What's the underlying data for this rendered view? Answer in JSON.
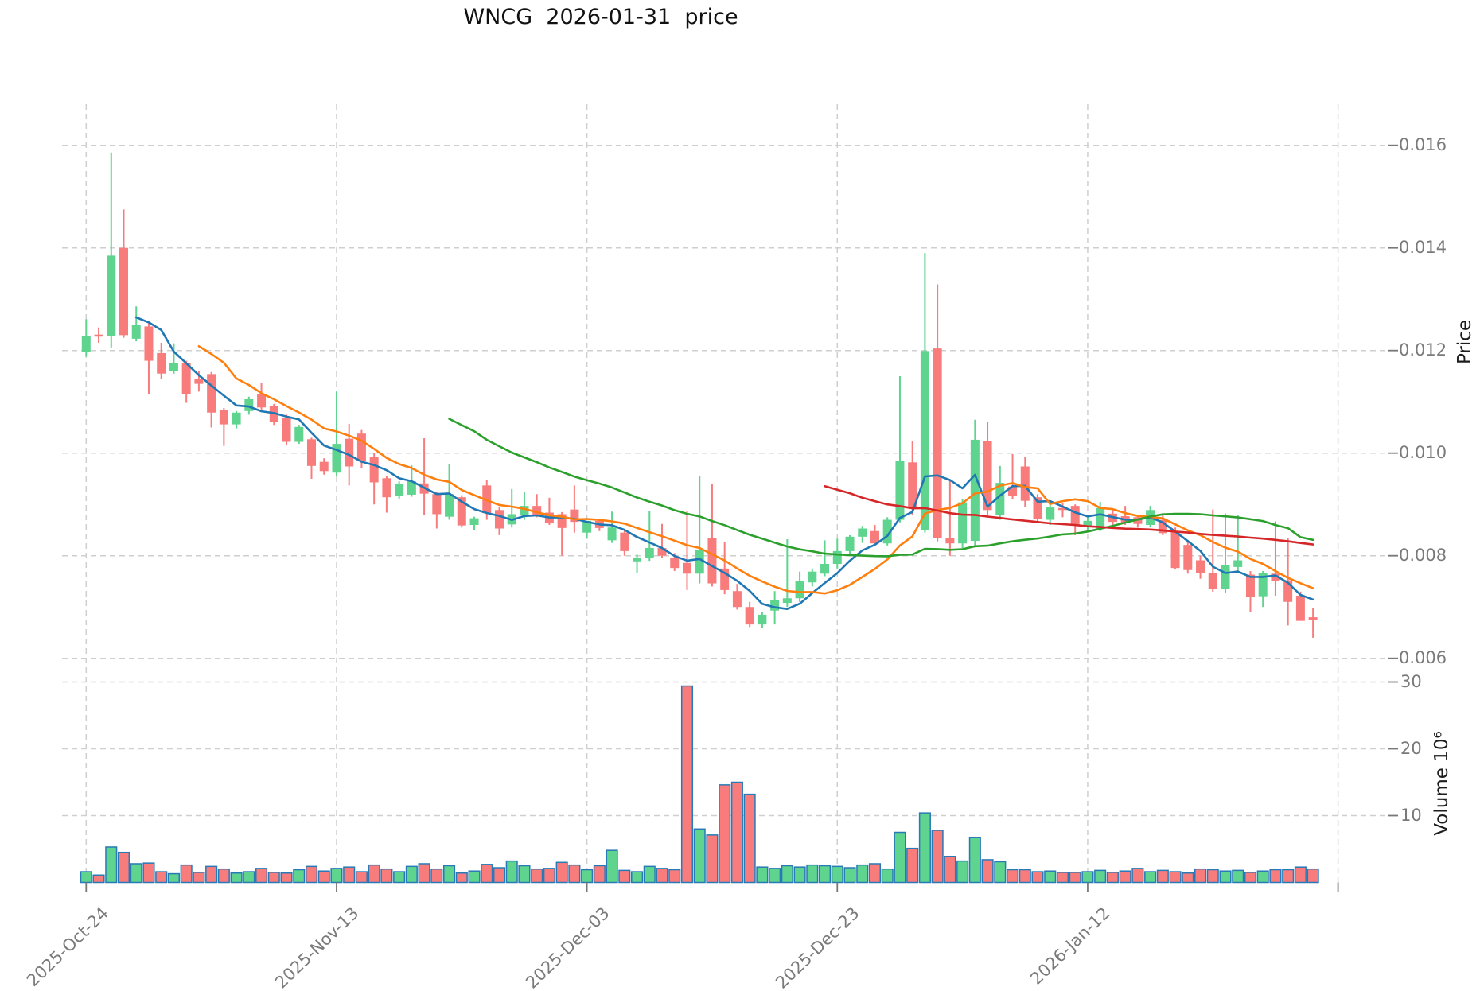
{
  "title": "WNCG  2026-01-31  price",
  "colors": {
    "background": "#ffffff",
    "grid": "#cfcfcf",
    "tick_mark": "#787878",
    "tick_text": "#7a7a7a",
    "axis_label_text": "#1c1c1c",
    "title_text": "#111111",
    "candle_up": "#5ed48e",
    "candle_down": "#f97c7c",
    "volume_border": "#2879b8",
    "ma_blue": "#1f77b4",
    "ma_orange": "#ff7f0e",
    "ma_green": "#2ca02c",
    "ma_red": "#d62728"
  },
  "chart_data": {
    "type": "candlestick",
    "symbol": "WNCG",
    "as_of_date": "2026-01-31",
    "title": "WNCG  2026-01-31  price",
    "legend_position": "none",
    "grid": "dashed",
    "price_axis": {
      "label": "Price",
      "side": "right",
      "ticks": [
        0.006,
        0.008,
        0.01,
        0.012,
        0.014,
        0.016
      ],
      "tick_labels": [
        "0.006",
        "0.008",
        "0.010",
        "0.012",
        "0.014",
        "0.016"
      ],
      "range": [
        0.006,
        0.0168
      ]
    },
    "volume_axis": {
      "label": "Volume  10⁶",
      "side": "right",
      "ticks": [
        10,
        20,
        30
      ],
      "tick_labels": [
        "10",
        "20",
        "30"
      ],
      "unit": "1e6",
      "range": [
        0,
        32
      ]
    },
    "x_ticks": [
      {
        "index": 0,
        "label": "2025-Oct-24"
      },
      {
        "index": 20,
        "label": "2025-Nov-13"
      },
      {
        "index": 40,
        "label": "2025-Dec-03"
      },
      {
        "index": 60,
        "label": "2025-Dec-23"
      },
      {
        "index": 80,
        "label": "2026-Jan-12"
      },
      {
        "index": 100,
        "label": ""
      }
    ],
    "moving_averages": [
      {
        "period": 5,
        "color": "#1f77b4"
      },
      {
        "period": 10,
        "color": "#ff7f0e"
      },
      {
        "period": 30,
        "color": "#2ca02c"
      },
      {
        "period": 60,
        "color": "#d62728"
      }
    ],
    "price_unit": 0.0001,
    "volume_unit": 1000000,
    "candles_format": [
      "open",
      "high",
      "low",
      "close",
      "volume"
    ],
    "candles": [
      [
        119.8,
        126.1,
        118.8,
        122.9,
        1.6
      ],
      [
        123.1,
        124.5,
        121.5,
        122.9,
        1.1
      ],
      [
        122.9,
        158.6,
        120.6,
        138.5,
        5.3
      ],
      [
        140.0,
        147.5,
        122.5,
        123.0,
        4.5
      ],
      [
        122.3,
        128.6,
        121.8,
        125.0,
        2.8
      ],
      [
        124.7,
        125.8,
        111.5,
        118.0,
        2.9
      ],
      [
        119.5,
        121.5,
        114.5,
        115.5,
        1.6
      ],
      [
        116.0,
        121.4,
        115.5,
        117.5,
        1.3
      ],
      [
        117.5,
        118.0,
        109.8,
        111.5,
        2.6
      ],
      [
        114.5,
        116.0,
        112.0,
        113.5,
        1.5
      ],
      [
        115.4,
        115.8,
        105.0,
        107.9,
        2.4
      ],
      [
        108.4,
        108.8,
        101.4,
        105.6,
        2.0
      ],
      [
        105.6,
        108.2,
        104.8,
        107.9,
        1.4
      ],
      [
        108.2,
        111.0,
        107.5,
        110.5,
        1.6
      ],
      [
        111.5,
        113.6,
        108.5,
        108.9,
        2.1
      ],
      [
        109.2,
        109.6,
        105.5,
        106.1,
        1.5
      ],
      [
        106.8,
        107.5,
        101.5,
        102.2,
        1.4
      ],
      [
        102.2,
        105.5,
        101.8,
        105.1,
        1.9
      ],
      [
        102.7,
        103.0,
        95.0,
        97.5,
        2.4
      ],
      [
        98.3,
        99.0,
        95.8,
        96.5,
        1.7
      ],
      [
        96.2,
        112.0,
        95.5,
        101.8,
        2.1
      ],
      [
        102.8,
        105.7,
        93.7,
        97.4,
        2.3
      ],
      [
        103.8,
        104.5,
        97.0,
        98.4,
        1.6
      ],
      [
        99.2,
        100.0,
        90.0,
        94.3,
        2.6
      ],
      [
        95.1,
        95.5,
        88.4,
        91.4,
        2.0
      ],
      [
        91.7,
        94.5,
        91.0,
        94.0,
        1.6
      ],
      [
        91.9,
        97.6,
        91.5,
        94.5,
        2.4
      ],
      [
        94.1,
        102.9,
        87.9,
        92.1,
        2.8
      ],
      [
        92.0,
        92.5,
        85.3,
        88.1,
        2.0
      ],
      [
        87.6,
        97.9,
        87.0,
        92.0,
        2.5
      ],
      [
        91.4,
        91.8,
        85.5,
        85.9,
        1.4
      ],
      [
        86.0,
        87.6,
        85.0,
        87.3,
        1.7
      ],
      [
        93.7,
        94.8,
        87.0,
        88.3,
        2.7
      ],
      [
        88.9,
        89.5,
        84.0,
        85.3,
        2.2
      ],
      [
        86.1,
        93.0,
        85.5,
        88.1,
        3.2
      ],
      [
        87.9,
        92.5,
        87.0,
        89.7,
        2.5
      ],
      [
        89.7,
        92.0,
        87.5,
        87.9,
        2.0
      ],
      [
        88.4,
        91.3,
        86.0,
        86.3,
        2.1
      ],
      [
        88.1,
        88.5,
        80.0,
        85.4,
        3.0
      ],
      [
        89.0,
        93.7,
        84.5,
        86.6,
        2.6
      ],
      [
        84.5,
        86.8,
        83.5,
        86.8,
        1.9
      ],
      [
        86.8,
        87.2,
        84.8,
        85.4,
        2.5
      ],
      [
        83.0,
        88.6,
        82.5,
        85.5,
        4.8
      ],
      [
        84.5,
        85.0,
        80.0,
        80.9,
        1.8
      ],
      [
        78.9,
        80.2,
        76.6,
        79.6,
        1.6
      ],
      [
        79.6,
        88.7,
        79.0,
        81.5,
        2.4
      ],
      [
        81.5,
        86.2,
        79.5,
        80.0,
        2.1
      ],
      [
        79.6,
        80.5,
        77.0,
        77.6,
        1.9
      ],
      [
        78.6,
        88.8,
        73.3,
        76.5,
        29.4
      ],
      [
        76.5,
        95.5,
        74.6,
        81.2,
        8.0
      ],
      [
        83.4,
        93.9,
        74.0,
        74.6,
        7.1
      ],
      [
        77.5,
        82.7,
        72.5,
        73.3,
        14.6
      ],
      [
        73.1,
        74.5,
        69.5,
        70.0,
        15.0
      ],
      [
        70.0,
        71.0,
        66.1,
        66.6,
        13.2
      ],
      [
        66.6,
        69.0,
        66.0,
        68.5,
        2.3
      ],
      [
        69.3,
        73.1,
        66.6,
        71.3,
        2.1
      ],
      [
        70.8,
        83.2,
        70.0,
        71.7,
        2.5
      ],
      [
        71.7,
        76.9,
        71.0,
        75.1,
        2.3
      ],
      [
        74.8,
        77.5,
        74.0,
        76.9,
        2.6
      ],
      [
        76.5,
        83.0,
        76.0,
        78.4,
        2.5
      ],
      [
        78.4,
        83.3,
        77.5,
        80.9,
        2.4
      ],
      [
        80.9,
        84.0,
        80.0,
        83.7,
        2.2
      ],
      [
        83.7,
        85.8,
        82.5,
        85.3,
        2.6
      ],
      [
        84.8,
        86.0,
        82.0,
        82.4,
        2.8
      ],
      [
        82.4,
        87.5,
        82.0,
        87.0,
        2.0
      ],
      [
        87.0,
        115.0,
        86.5,
        98.4,
        7.5
      ],
      [
        98.2,
        102.4,
        88.0,
        89.5,
        5.1
      ],
      [
        85.0,
        139.0,
        84.5,
        119.9,
        10.4
      ],
      [
        120.4,
        132.9,
        82.8,
        83.5,
        7.8
      ],
      [
        83.5,
        94.8,
        80.0,
        82.4,
        3.9
      ],
      [
        82.4,
        91.0,
        81.5,
        90.4,
        3.2
      ],
      [
        82.9,
        106.5,
        82.0,
        102.6,
        6.7
      ],
      [
        102.3,
        106.0,
        87.5,
        88.9,
        3.4
      ],
      [
        88.0,
        97.5,
        87.0,
        94.2,
        3.1
      ],
      [
        93.5,
        99.8,
        91.0,
        91.7,
        1.9
      ],
      [
        97.4,
        99.3,
        89.5,
        90.7,
        1.9
      ],
      [
        91.4,
        92.0,
        86.5,
        87.2,
        1.6
      ],
      [
        87.0,
        90.5,
        86.0,
        89.4,
        1.7
      ],
      [
        89.3,
        90.3,
        87.5,
        88.9,
        1.5
      ],
      [
        89.7,
        90.0,
        84.0,
        86.0,
        1.5
      ],
      [
        85.8,
        88.0,
        84.5,
        86.8,
        1.6
      ],
      [
        85.3,
        90.5,
        84.8,
        89.3,
        1.8
      ],
      [
        88.2,
        89.0,
        85.8,
        86.6,
        1.5
      ],
      [
        87.7,
        89.7,
        86.0,
        86.4,
        1.7
      ],
      [
        87.5,
        88.0,
        85.5,
        86.2,
        2.1
      ],
      [
        86.0,
        89.7,
        85.5,
        88.9,
        1.6
      ],
      [
        87.0,
        88.0,
        84.0,
        84.4,
        1.8
      ],
      [
        84.7,
        85.5,
        77.3,
        77.6,
        1.6
      ],
      [
        82.1,
        83.0,
        76.5,
        77.2,
        1.4
      ],
      [
        79.1,
        80.0,
        75.5,
        76.6,
        2.0
      ],
      [
        76.6,
        89.0,
        73.0,
        73.5,
        1.9
      ],
      [
        73.5,
        88.2,
        72.8,
        78.2,
        1.7
      ],
      [
        77.8,
        87.9,
        77.0,
        79.1,
        1.8
      ],
      [
        76.3,
        77.0,
        69.1,
        71.9,
        1.5
      ],
      [
        72.1,
        77.0,
        70.0,
        76.6,
        1.7
      ],
      [
        76.5,
        86.7,
        72.2,
        75.0,
        1.9
      ],
      [
        75.2,
        83.4,
        66.4,
        71.0,
        1.9
      ],
      [
        72.2,
        73.0,
        67.3,
        67.3,
        2.3
      ],
      [
        68.0,
        69.8,
        64.0,
        67.4,
        2.0
      ]
    ]
  }
}
